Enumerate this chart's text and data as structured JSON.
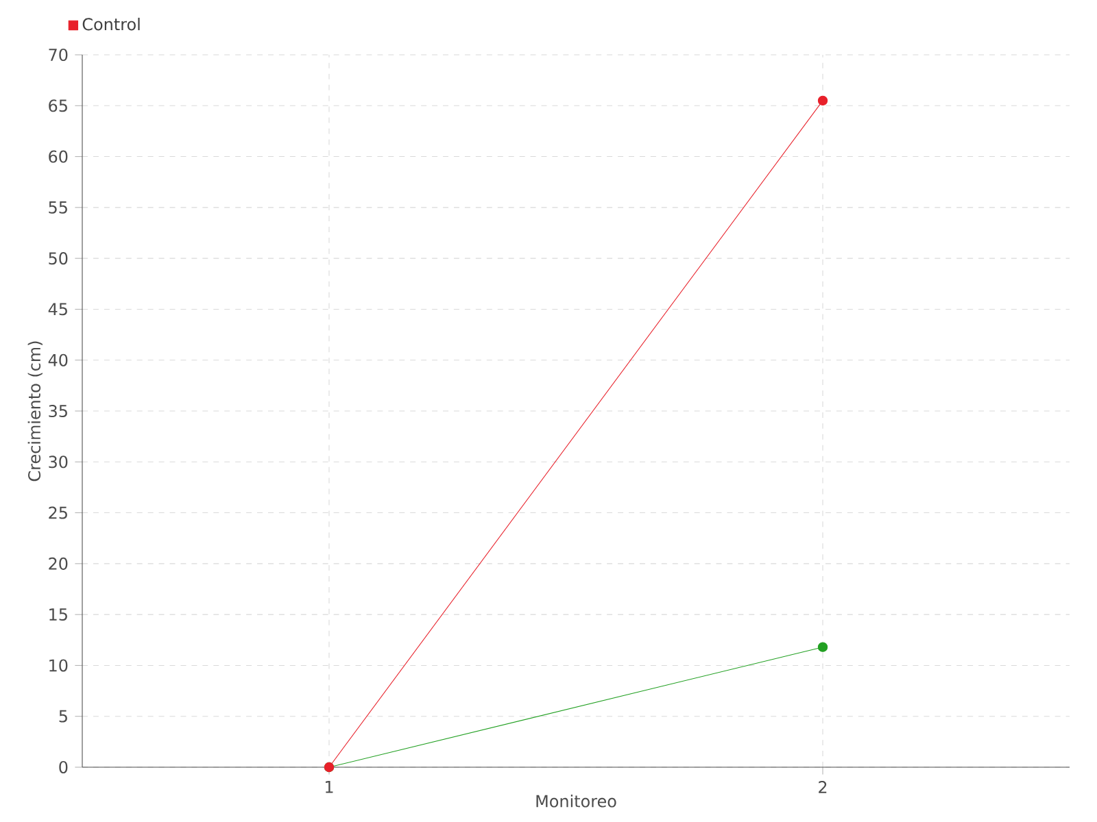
{
  "chart_data": {
    "type": "line",
    "xlabel": "Monitoreo",
    "ylabel": "Crecimiento (cm)",
    "categories": [
      "1",
      "2"
    ],
    "series": [
      {
        "color": "#22a022",
        "values": [
          0,
          11.8
        ]
      },
      {
        "name": "Control",
        "color": "#e8202a",
        "values": [
          0,
          65.5
        ]
      }
    ],
    "ylim": [
      0,
      70
    ],
    "yticks": [
      0,
      5,
      10,
      15,
      20,
      25,
      30,
      35,
      40,
      45,
      50,
      55,
      60,
      65,
      70
    ],
    "grid": true,
    "legend": "top left",
    "marker": "circle",
    "line_style": "solid"
  }
}
